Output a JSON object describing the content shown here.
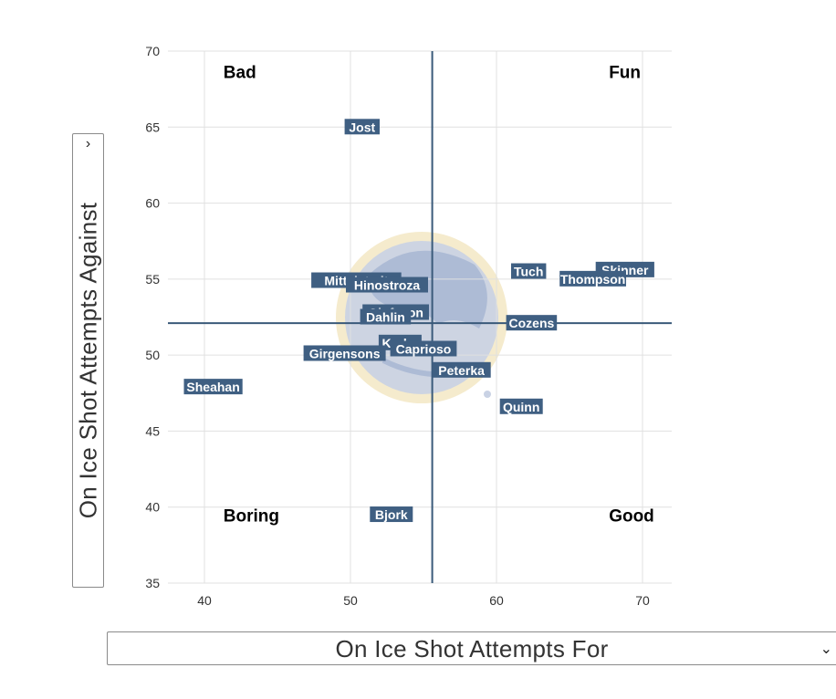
{
  "chart_data": {
    "type": "scatter",
    "xlim": [
      37.5,
      72.0
    ],
    "ylim": [
      35,
      70
    ],
    "xticks": [
      40,
      50,
      60,
      70
    ],
    "yticks": [
      35,
      40,
      45,
      50,
      55,
      60,
      65,
      70
    ],
    "grid": true,
    "reference_lines": {
      "x": 55.6,
      "y": 52.1
    },
    "quadrant_labels": [
      {
        "text": "Bad",
        "x": 41.3,
        "y": 68.6
      },
      {
        "text": "Fun",
        "x": 67.7,
        "y": 68.6
      },
      {
        "text": "Boring",
        "x": 41.3,
        "y": 39.4
      },
      {
        "text": "Good",
        "x": 67.7,
        "y": 39.4
      }
    ],
    "points": [
      {
        "name": "Jost",
        "x": 50.8,
        "y": 65.0
      },
      {
        "name": "Mittelstadt",
        "x": 50.4,
        "y": 54.9
      },
      {
        "name": "Hinostroza",
        "x": 52.5,
        "y": 54.6
      },
      {
        "name": "Tuch",
        "x": 62.2,
        "y": 55.5
      },
      {
        "name": "Skinner",
        "x": 68.8,
        "y": 55.6
      },
      {
        "name": "Thompson",
        "x": 66.6,
        "y": 55.0
      },
      {
        "name": "Olofsson",
        "x": 53.1,
        "y": 52.8
      },
      {
        "name": "Dahlin",
        "x": 52.4,
        "y": 52.5
      },
      {
        "name": "Cozens",
        "x": 62.4,
        "y": 52.1
      },
      {
        "name": "Krebs",
        "x": 53.4,
        "y": 50.8
      },
      {
        "name": "Caprioso",
        "x": 55.0,
        "y": 50.4
      },
      {
        "name": "Girgensons",
        "x": 49.6,
        "y": 50.1
      },
      {
        "name": "Peterka",
        "x": 57.6,
        "y": 49.0
      },
      {
        "name": "Sheahan",
        "x": 40.6,
        "y": 47.9
      },
      {
        "name": "Quinn",
        "x": 61.7,
        "y": 46.6
      },
      {
        "name": "Bjork",
        "x": 52.8,
        "y": 39.5
      }
    ],
    "ylabel": "On Ice Shot Attempts Against",
    "xlabel": "On Ice Shot Attempts For",
    "colors": {
      "point_label_bg": "#3f5f82",
      "point_label_text": "#ffffff",
      "reference_line": "#3a5a7a",
      "grid": "#e0e0e0"
    }
  },
  "controls": {
    "y_axis_select": {
      "value": "On Ice Shot Attempts Against",
      "chevron": "›"
    },
    "x_axis_select": {
      "value": "On Ice Shot Attempts For",
      "chevron": "⌄"
    }
  }
}
